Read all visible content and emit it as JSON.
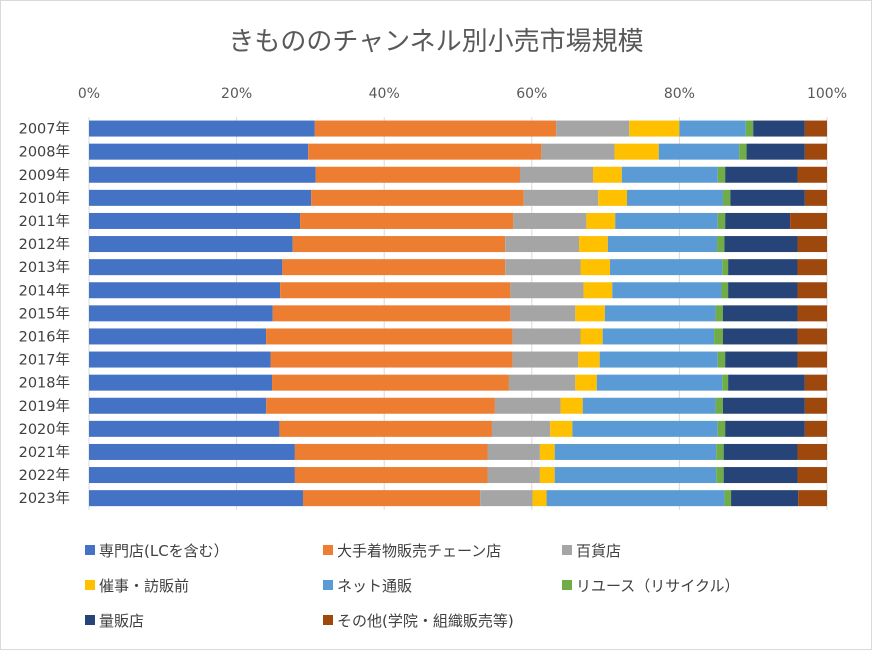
{
  "chart_data": {
    "type": "bar",
    "orientation": "horizontal",
    "stacked": "percent",
    "title": "きもののチャンネル別小売市場規模",
    "xlabel": "",
    "ylabel": "",
    "xlim": [
      0,
      100
    ],
    "x_ticks": [
      "0%",
      "20%",
      "40%",
      "60%",
      "80%",
      "100%"
    ],
    "x_tick_values": [
      0,
      20,
      40,
      60,
      80,
      100
    ],
    "grid": true,
    "legend_position": "bottom",
    "categories": [
      "2007年",
      "2008年",
      "2009年",
      "2010年",
      "2011年",
      "2012年",
      "2013年",
      "2014年",
      "2015年",
      "2016年",
      "2017年",
      "2018年",
      "2019年",
      "2020年",
      "2021年",
      "2022年",
      "2023年"
    ],
    "series": [
      {
        "name": "専門店(LCを含む）",
        "color": "#4472c4",
        "values": [
          30.6,
          29.7,
          30.7,
          30.1,
          28.6,
          27.6,
          26.2,
          25.9,
          24.9,
          24.0,
          24.6,
          24.8,
          24.0,
          25.8,
          27.9,
          27.9,
          29.0
        ]
      },
      {
        "name": "大手着物販売チェーン店",
        "color": "#ed7d31",
        "values": [
          32.7,
          31.6,
          27.7,
          28.8,
          28.9,
          28.8,
          30.2,
          31.2,
          32.2,
          33.4,
          32.8,
          32.1,
          31.0,
          28.8,
          26.1,
          26.1,
          24.0
        ]
      },
      {
        "name": "百貨店",
        "color": "#a5a5a5",
        "values": [
          9.9,
          9.9,
          9.9,
          10.1,
          9.9,
          10.0,
          10.2,
          9.9,
          8.8,
          9.2,
          8.9,
          9.0,
          8.9,
          7.9,
          7.1,
          7.1,
          7.1
        ]
      },
      {
        "name": "催事・訪販前",
        "color": "#ffc000",
        "values": [
          6.8,
          6.0,
          3.9,
          3.9,
          3.9,
          3.9,
          4.0,
          3.9,
          4.0,
          3.0,
          2.9,
          2.9,
          3.0,
          3.0,
          2.0,
          2.0,
          1.9
        ]
      },
      {
        "name": "ネット通販",
        "color": "#5b9bd5",
        "values": [
          9.0,
          10.9,
          13.0,
          13.0,
          13.9,
          14.8,
          15.2,
          14.8,
          15.0,
          15.1,
          16.0,
          17.0,
          18.0,
          19.7,
          21.9,
          21.9,
          24.1
        ]
      },
      {
        "name": "リユース（リサイクル）",
        "color": "#70ad47",
        "values": [
          1.0,
          1.0,
          1.0,
          1.0,
          1.0,
          1.0,
          0.8,
          0.9,
          1.0,
          1.2,
          1.0,
          0.8,
          1.0,
          1.0,
          1.0,
          1.0,
          0.9
        ]
      },
      {
        "name": "量販店",
        "color": "#264478",
        "values": [
          7.0,
          7.9,
          9.8,
          10.1,
          8.8,
          9.9,
          9.4,
          9.4,
          10.1,
          10.1,
          9.8,
          10.4,
          11.1,
          10.8,
          10.0,
          10.0,
          9.1
        ]
      },
      {
        "name": "その他(学院・組織販売等)",
        "color": "#9e480e",
        "values": [
          3.0,
          3.0,
          4.0,
          3.0,
          5.0,
          4.0,
          4.0,
          4.0,
          4.0,
          4.0,
          4.0,
          3.0,
          3.0,
          3.0,
          4.0,
          4.0,
          3.9
        ]
      }
    ]
  }
}
